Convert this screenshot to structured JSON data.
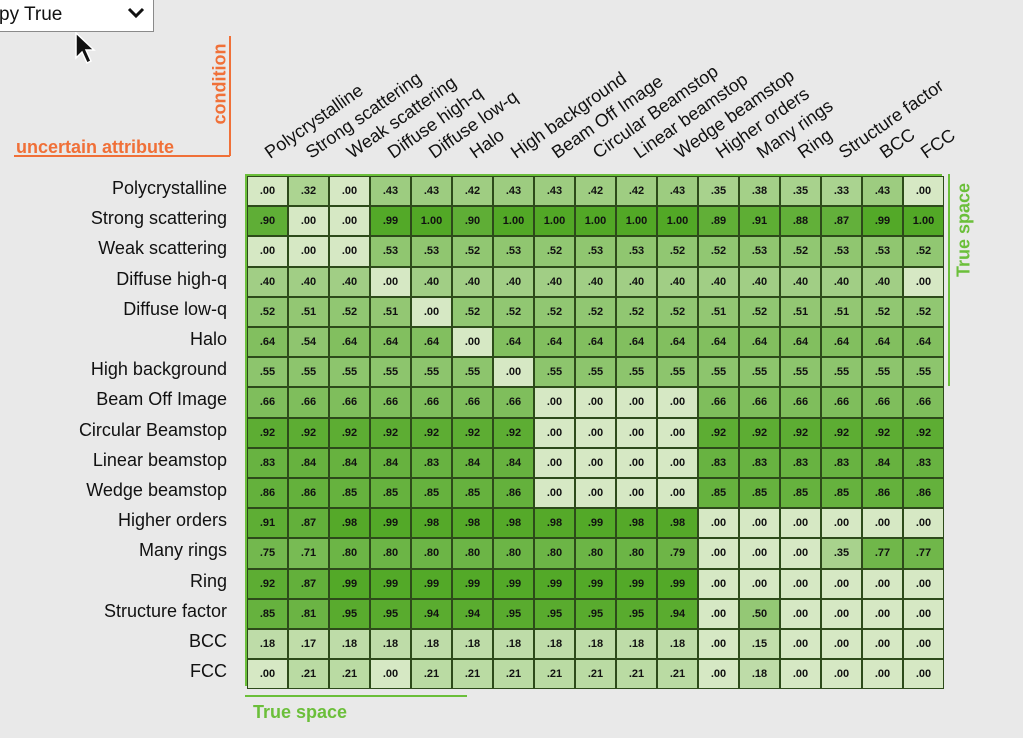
{
  "dropdown": {
    "label": "py True"
  },
  "icons": {
    "dropdown": "chevron-down-icon",
    "cursor": "mouse-pointer-icon"
  },
  "colors": {
    "axis_orange": "#f07038",
    "axis_green": "#6bbf3a"
  },
  "chart_data": {
    "type": "heatmap",
    "xlabel": "condition",
    "ylabel": "uncertain attribute",
    "x_axis_title": "True space",
    "y_axis_title": "True space",
    "columns": [
      "Polycrystalline",
      "Strong scattering",
      "Weak scattering",
      "Diffuse high-q",
      "Diffuse low-q",
      "Halo",
      "High background",
      "Beam Off Image",
      "Circular Beamstop",
      "Linear beamstop",
      "Wedge beamstop",
      "Higher orders",
      "Many rings",
      "Ring",
      "Structure factor",
      "BCC",
      "FCC"
    ],
    "rows": [
      "Polycrystalline",
      "Strong scattering",
      "Weak scattering",
      "Diffuse high-q",
      "Diffuse low-q",
      "Halo",
      "High background",
      "Beam Off Image",
      "Circular Beamstop",
      "Linear beamstop",
      "Wedge beamstop",
      "Higher orders",
      "Many rings",
      "Ring",
      "Structure factor",
      "BCC",
      "FCC"
    ],
    "values": [
      [
        ".00",
        ".32",
        ".00",
        ".43",
        ".43",
        ".42",
        ".43",
        ".43",
        ".42",
        ".42",
        ".43",
        ".35",
        ".38",
        ".35",
        ".33",
        ".43",
        ".00"
      ],
      [
        ".90",
        ".00",
        ".00",
        ".99",
        "1.00",
        ".90",
        "1.00",
        "1.00",
        "1.00",
        "1.00",
        "1.00",
        ".89",
        ".91",
        ".88",
        ".87",
        ".99",
        "1.00"
      ],
      [
        ".00",
        ".00",
        ".00",
        ".53",
        ".53",
        ".52",
        ".53",
        ".52",
        ".53",
        ".53",
        ".52",
        ".52",
        ".53",
        ".52",
        ".53",
        ".53",
        ".52"
      ],
      [
        ".40",
        ".40",
        ".40",
        ".00",
        ".40",
        ".40",
        ".40",
        ".40",
        ".40",
        ".40",
        ".40",
        ".40",
        ".40",
        ".40",
        ".40",
        ".40",
        ".00"
      ],
      [
        ".52",
        ".51",
        ".52",
        ".51",
        ".00",
        ".52",
        ".52",
        ".52",
        ".52",
        ".52",
        ".52",
        ".51",
        ".52",
        ".51",
        ".51",
        ".52",
        ".52"
      ],
      [
        ".64",
        ".54",
        ".64",
        ".64",
        ".64",
        ".00",
        ".64",
        ".64",
        ".64",
        ".64",
        ".64",
        ".64",
        ".64",
        ".64",
        ".64",
        ".64",
        ".64"
      ],
      [
        ".55",
        ".55",
        ".55",
        ".55",
        ".55",
        ".55",
        ".00",
        ".55",
        ".55",
        ".55",
        ".55",
        ".55",
        ".55",
        ".55",
        ".55",
        ".55",
        ".55"
      ],
      [
        ".66",
        ".66",
        ".66",
        ".66",
        ".66",
        ".66",
        ".66",
        ".00",
        ".00",
        ".00",
        ".00",
        ".66",
        ".66",
        ".66",
        ".66",
        ".66",
        ".66"
      ],
      [
        ".92",
        ".92",
        ".92",
        ".92",
        ".92",
        ".92",
        ".92",
        ".00",
        ".00",
        ".00",
        ".00",
        ".92",
        ".92",
        ".92",
        ".92",
        ".92",
        ".92"
      ],
      [
        ".83",
        ".84",
        ".84",
        ".84",
        ".83",
        ".84",
        ".84",
        ".00",
        ".00",
        ".00",
        ".00",
        ".83",
        ".83",
        ".83",
        ".83",
        ".84",
        ".83"
      ],
      [
        ".86",
        ".86",
        ".85",
        ".85",
        ".85",
        ".85",
        ".86",
        ".00",
        ".00",
        ".00",
        ".00",
        ".85",
        ".85",
        ".85",
        ".85",
        ".86",
        ".86"
      ],
      [
        ".91",
        ".87",
        ".98",
        ".99",
        ".98",
        ".98",
        ".98",
        ".98",
        ".99",
        ".98",
        ".98",
        ".00",
        ".00",
        ".00",
        ".00",
        ".00",
        ".00"
      ],
      [
        ".75",
        ".71",
        ".80",
        ".80",
        ".80",
        ".80",
        ".80",
        ".80",
        ".80",
        ".80",
        ".79",
        ".00",
        ".00",
        ".00",
        ".35",
        ".77",
        ".77"
      ],
      [
        ".92",
        ".87",
        ".99",
        ".99",
        ".99",
        ".99",
        ".99",
        ".99",
        ".99",
        ".99",
        ".99",
        ".00",
        ".00",
        ".00",
        ".00",
        ".00",
        ".00"
      ],
      [
        ".85",
        ".81",
        ".95",
        ".95",
        ".94",
        ".94",
        ".95",
        ".95",
        ".95",
        ".95",
        ".94",
        ".00",
        ".50",
        ".00",
        ".00",
        ".00",
        ".00"
      ],
      [
        ".18",
        ".17",
        ".18",
        ".18",
        ".18",
        ".18",
        ".18",
        ".18",
        ".18",
        ".18",
        ".18",
        ".00",
        ".15",
        ".00",
        ".00",
        ".00",
        ".00"
      ],
      [
        ".00",
        ".21",
        ".21",
        ".00",
        ".21",
        ".21",
        ".21",
        ".21",
        ".21",
        ".21",
        ".21",
        ".00",
        ".18",
        ".00",
        ".00",
        ".00",
        ".00"
      ]
    ]
  }
}
